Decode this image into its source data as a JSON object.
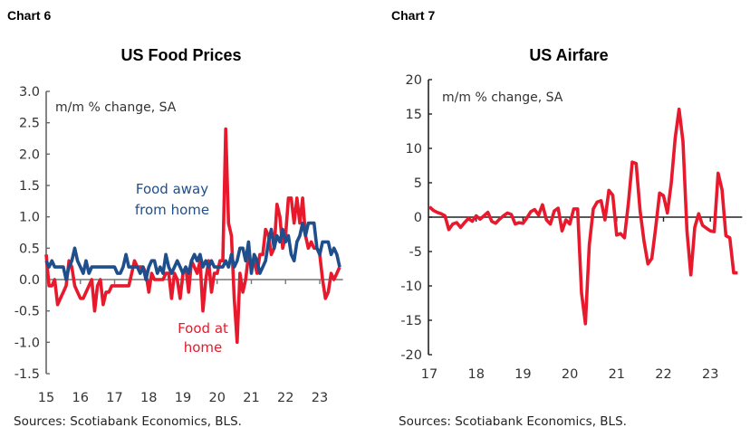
{
  "chart_data": [
    {
      "label": "Chart 6",
      "type": "line",
      "title": "US Food Prices",
      "annotation": "m/m % change, SA",
      "source": "Sources: Scotiabank Economics, BLS.",
      "ylim": [
        -1.5,
        3.0
      ],
      "yticks": [
        "3.0",
        "2.5",
        "2.0",
        "1.5",
        "1.0",
        "0.5",
        "0.0",
        "-0.5",
        "-1.0",
        "-1.5"
      ],
      "xticks": [
        "15",
        "16",
        "17",
        "18",
        "19",
        "20",
        "21",
        "22",
        "23"
      ],
      "x_start": "2015-01",
      "frequency": "monthly",
      "series": [
        {
          "name": "Food away from home",
          "color": "#1f4e8c",
          "values": [
            0.3,
            0.2,
            0.3,
            0.2,
            0.2,
            0.2,
            0.2,
            0,
            0.2,
            0.3,
            0.5,
            0.3,
            0.2,
            0.1,
            0.3,
            0.1,
            0.2,
            0.2,
            0.2,
            0.2,
            0.2,
            0.2,
            0.2,
            0.2,
            0.2,
            0.1,
            0.1,
            0.2,
            0.4,
            0.2,
            0.2,
            0.2,
            0.2,
            0.1,
            0.2,
            0,
            0.2,
            0.3,
            0.3,
            0.1,
            0.2,
            0.1,
            0.4,
            0.2,
            0.1,
            0.2,
            0.3,
            0.2,
            0.1,
            0.2,
            0.1,
            0.3,
            0.4,
            0.3,
            0.4,
            0.2,
            0.3,
            0.2,
            0.3,
            0.2,
            0.2,
            0.2,
            0.2,
            0.3,
            0.2,
            0.4,
            0.2,
            0.3,
            0.5,
            0.5,
            0.3,
            0.6,
            0.1,
            0.4,
            0.3,
            0.1,
            0.2,
            0.3,
            0.6,
            0.8,
            0.5,
            0.7,
            0.6,
            0.8,
            0.6,
            0.7,
            0.4,
            0.3,
            0.6,
            0.7,
            0.9,
            0.7,
            0.9,
            0.9,
            0.9,
            0.5,
            0.4,
            0.6,
            0.6,
            0.6,
            0.4,
            0.5,
            0.4,
            0.2
          ]
        },
        {
          "name": "Food at home",
          "color": "#e8192c",
          "values": [
            0.4,
            -0.1,
            -0.1,
            0,
            -0.4,
            -0.3,
            -0.2,
            -0.1,
            0.3,
            0.2,
            -0.1,
            -0.2,
            -0.3,
            -0.3,
            -0.2,
            -0.1,
            0,
            -0.5,
            -0.1,
            0,
            -0.4,
            -0.2,
            -0.2,
            -0.1,
            -0.1,
            -0.1,
            -0.1,
            -0.1,
            -0.1,
            -0.1,
            0.1,
            0.3,
            0.2,
            0.2,
            0.2,
            0.1,
            -0.2,
            0.1,
            0,
            0,
            0,
            0,
            0.1,
            0.1,
            -0.3,
            0.1,
            0,
            -0.3,
            0.1,
            0.2,
            -0.2,
            0.3,
            0.2,
            0.1,
            0.3,
            -0.5,
            0,
            0.3,
            -0.2,
            0.1,
            0.1,
            0.3,
            0.3,
            2.4,
            0.9,
            0.7,
            -0.3,
            -1.0,
            0.1,
            -0.2,
            0,
            0.4,
            0.2,
            0.3,
            0.1,
            0.4,
            0.4,
            0.8,
            0.7,
            0.4,
            0.5,
            1.2,
            1.0,
            0.5,
            0.7,
            1.3,
            1.3,
            0.9,
            1.3,
            0.9,
            1.3,
            0.7,
            0.5,
            0.6,
            0.5,
            0.5,
            0.4,
            0.0,
            -0.3,
            -0.2,
            0.1,
            0.0,
            0.1,
            0.2
          ]
        }
      ]
    },
    {
      "label": "Chart 7",
      "type": "line",
      "title": "US Airfare",
      "annotation": "m/m % change, SA",
      "source": "Sources: Scotiabank Economics, BLS.",
      "ylim": [
        -20,
        20
      ],
      "yticks": [
        "20",
        "15",
        "10",
        "5",
        "0",
        "-5",
        "-10",
        "-15",
        "-20"
      ],
      "xticks": [
        "17",
        "18",
        "19",
        "20",
        "21",
        "22",
        "23"
      ],
      "x_start": "2017-01",
      "frequency": "monthly",
      "series": [
        {
          "color": "#e8192c",
          "values": [
            1.5,
            1.0,
            0.7,
            0.5,
            0.2,
            -1.8,
            -1,
            -0.8,
            -1.5,
            -0.8,
            -0.2,
            -0.6,
            0.2,
            -0.3,
            0.2,
            0.7,
            -0.6,
            -0.9,
            -0.3,
            0.2,
            0.6,
            0.4,
            -1.0,
            -0.8,
            -0.9,
            -0.1,
            0.8,
            1.1,
            0.3,
            1.8,
            -0.4,
            -1.0,
            0.9,
            1.3,
            -2.0,
            -0.4,
            -1.0,
            1.2,
            1.2,
            -11,
            -15.5,
            -4.0,
            1.2,
            2.2,
            2.4,
            -0.4,
            3.9,
            3.2,
            -2.6,
            -2.4,
            -3.0,
            2.0,
            8.0,
            7.8,
            1.0,
            -3.5,
            -6.8,
            -6.0,
            -1.5,
            3.5,
            3.1,
            0.6,
            5.0,
            11.5,
            15.7,
            11.0,
            -2.0,
            -8.4,
            -1.5,
            0.5,
            -1.2,
            -1.6,
            -2.0,
            -2.1,
            6.4,
            4.0,
            -2.7,
            -3.0,
            -8.1,
            -8.1
          ]
        }
      ]
    }
  ]
}
